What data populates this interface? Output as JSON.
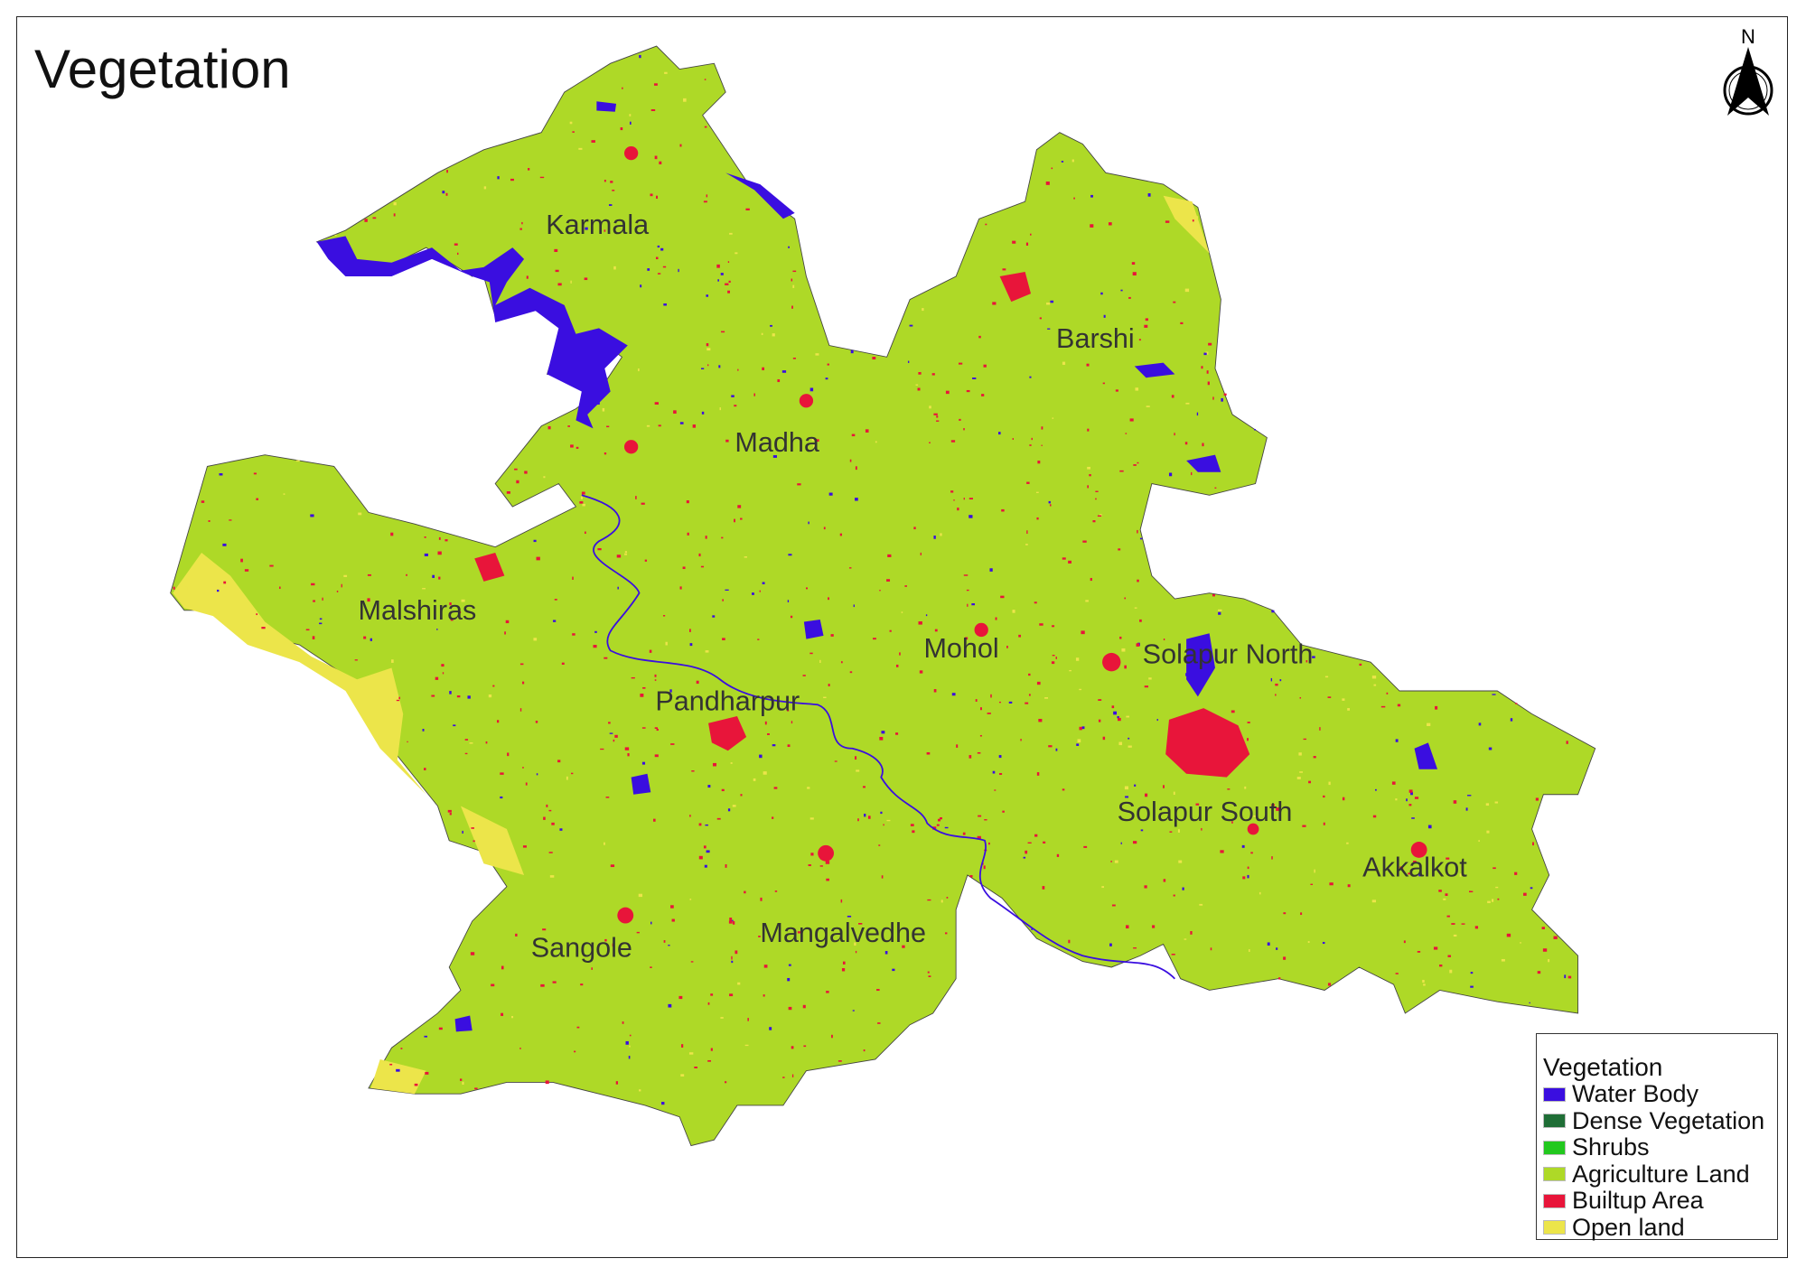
{
  "title": "Vegetation",
  "north_arrow": {
    "label": "N",
    "icon": "north-arrow-icon"
  },
  "regions": [
    "Karmala",
    "Barshi",
    "Madha",
    "Malshiras",
    "Mohol",
    "Solapur North",
    "Pandharpur",
    "Solapur South",
    "Akkalkot",
    "Sangole",
    "Mangalvedhe"
  ],
  "legend": {
    "title": "Vegetation",
    "items": [
      {
        "label": "Water Body",
        "color": "#3a0ee0"
      },
      {
        "label": "Dense Vegetation",
        "color": "#1f6e36"
      },
      {
        "label": "Shrubs",
        "color": "#22c81e"
      },
      {
        "label": "Agriculture Land",
        "color": "#aed927"
      },
      {
        "label": "Builtup Area",
        "color": "#e8153a"
      },
      {
        "label": "Open land",
        "color": "#ece54a"
      }
    ]
  }
}
